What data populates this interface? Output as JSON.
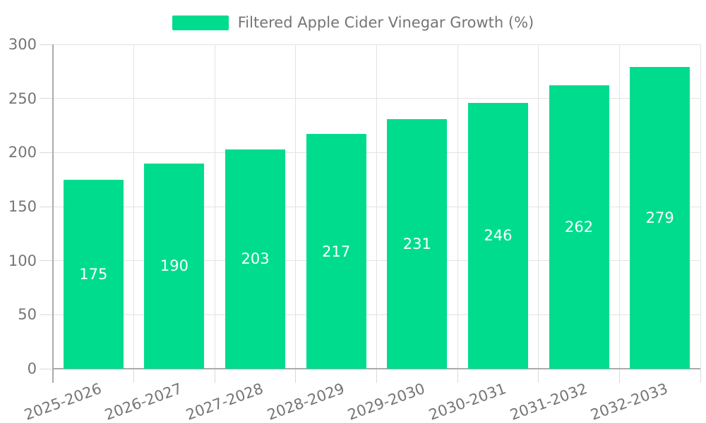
{
  "legend": {
    "label": "Filtered Apple Cider Vinegar Growth (%)"
  },
  "chart_data": {
    "type": "bar",
    "title": "",
    "categories": [
      "2025-2026",
      "2026-2027",
      "2027-2028",
      "2028-2029",
      "2029-2030",
      "2030-2031",
      "2031-2032",
      "2032-2033"
    ],
    "series": [
      {
        "name": "Filtered Apple Cider Vinegar Growth (%)",
        "values": [
          175,
          190,
          203,
          217,
          231,
          246,
          262,
          279
        ]
      }
    ],
    "xlabel": "",
    "ylabel": "",
    "ylim": [
      0,
      300
    ],
    "yticks": [
      0,
      50,
      100,
      150,
      200,
      250,
      300
    ],
    "grid": true,
    "legend_position": "top-center",
    "x_label_rotation_deg": -20,
    "value_label_position": "inside-middle",
    "colors": {
      "bar": "#00DC8E",
      "grid": "#E3E3E3",
      "tick": "#D9D9D9",
      "axis": "#ABABAB",
      "text": "#757575",
      "value_text": "#FFFFFF"
    }
  }
}
